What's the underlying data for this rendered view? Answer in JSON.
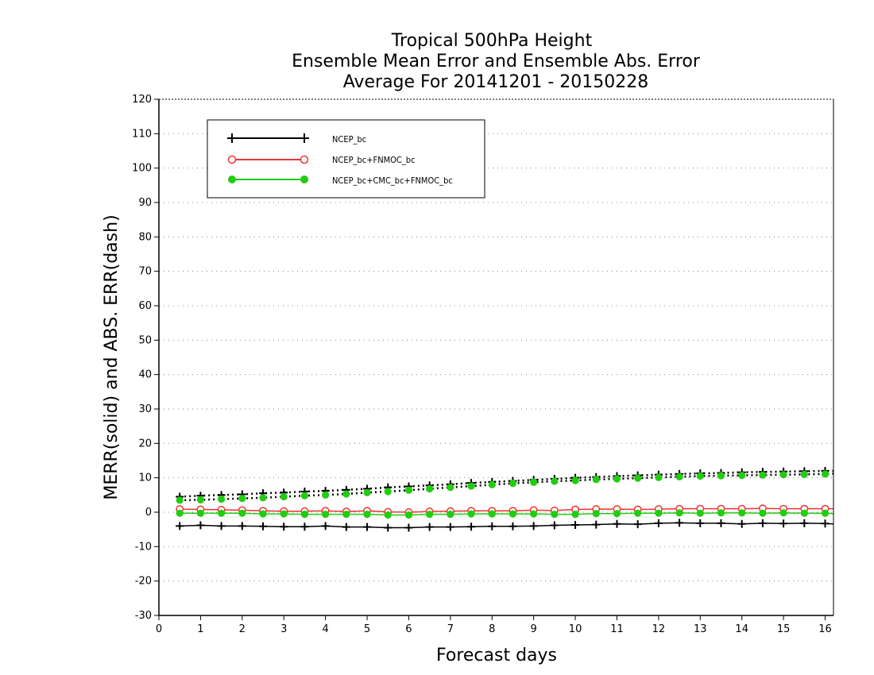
{
  "chart_data": {
    "type": "line",
    "title_lines": [
      "Tropical 500hPa Height",
      "Ensemble Mean Error and Ensemble Abs. Error",
      "Average For 20141201 - 20150228"
    ],
    "xlabel": "Forecast days",
    "ylabel": "MERR(solid) and ABS. ERR(dash)",
    "xlim": [
      0,
      16.2
    ],
    "ylim": [
      -30,
      120
    ],
    "x_ticks": [
      0,
      1,
      2,
      3,
      4,
      5,
      6,
      7,
      8,
      9,
      10,
      11,
      12,
      13,
      14,
      15,
      16
    ],
    "y_ticks": [
      -30,
      -20,
      -10,
      0,
      10,
      20,
      30,
      40,
      50,
      60,
      70,
      80,
      90,
      100,
      110,
      120
    ],
    "grid": "horizontal dotted",
    "legend_position": "top-left",
    "x": [
      0.5,
      1.0,
      1.5,
      2.0,
      2.5,
      3.0,
      3.5,
      4.0,
      4.5,
      5.0,
      5.5,
      6.0,
      6.5,
      7.0,
      7.5,
      8.0,
      8.5,
      9.0,
      9.5,
      10.0,
      10.5,
      11.0,
      11.5,
      12.0,
      12.5,
      13.0,
      13.5,
      14.0,
      14.5,
      15.0,
      15.5,
      16.0,
      16.2
    ],
    "series": [
      {
        "name": "NCEP_bc",
        "color": "#000000",
        "marker": "plus",
        "merr": [
          -4.0,
          -3.8,
          -4.0,
          -4.0,
          -4.1,
          -4.2,
          -4.2,
          -4.0,
          -4.3,
          -4.3,
          -4.5,
          -4.5,
          -4.3,
          -4.3,
          -4.2,
          -4.1,
          -4.1,
          -4.0,
          -3.8,
          -3.7,
          -3.6,
          -3.4,
          -3.5,
          -3.2,
          -3.1,
          -3.2,
          -3.2,
          -3.4,
          -3.2,
          -3.3,
          -3.2,
          -3.3,
          -3.4
        ],
        "abs_err": [
          4.5,
          4.8,
          5.0,
          5.2,
          5.5,
          5.7,
          6.0,
          6.2,
          6.5,
          6.8,
          7.2,
          7.5,
          7.8,
          8.1,
          8.5,
          8.8,
          9.1,
          9.4,
          9.7,
          10.0,
          10.2,
          10.5,
          10.7,
          10.9,
          11.1,
          11.3,
          11.4,
          11.6,
          11.7,
          11.8,
          11.9,
          12.0,
          12.0
        ]
      },
      {
        "name": "NCEP_bc+FNMOC_bc",
        "color": "#ee3333",
        "marker": "open-circle",
        "merr": [
          0.9,
          0.8,
          0.7,
          0.6,
          0.4,
          0.3,
          0.3,
          0.4,
          0.2,
          0.4,
          0.1,
          0.0,
          0.2,
          0.3,
          0.4,
          0.4,
          0.4,
          0.6,
          0.5,
          0.8,
          0.9,
          0.9,
          0.8,
          0.9,
          1.0,
          1.0,
          1.0,
          1.0,
          1.1,
          1.0,
          1.0,
          1.0,
          1.0
        ]
      },
      {
        "name": "NCEP_bc+CMC_bc+FNMOC_bc",
        "color": "#22cc11",
        "marker": "filled-circle",
        "merr": [
          -0.3,
          -0.3,
          -0.3,
          -0.3,
          -0.5,
          -0.5,
          -0.6,
          -0.6,
          -0.6,
          -0.6,
          -0.8,
          -0.8,
          -0.6,
          -0.6,
          -0.5,
          -0.5,
          -0.5,
          -0.5,
          -0.6,
          -0.6,
          -0.4,
          -0.4,
          -0.3,
          -0.3,
          -0.2,
          -0.3,
          -0.2,
          -0.2,
          -0.3,
          -0.2,
          -0.3,
          -0.3,
          -0.4
        ],
        "abs_err": [
          3.5,
          3.6,
          3.8,
          4.0,
          4.2,
          4.5,
          4.8,
          5.0,
          5.3,
          5.7,
          6.0,
          6.4,
          6.8,
          7.2,
          7.6,
          8.0,
          8.4,
          8.7,
          9.0,
          9.2,
          9.5,
          9.7,
          9.9,
          10.1,
          10.3,
          10.5,
          10.6,
          10.7,
          10.8,
          10.9,
          11.0,
          11.1,
          11.2
        ]
      }
    ]
  }
}
